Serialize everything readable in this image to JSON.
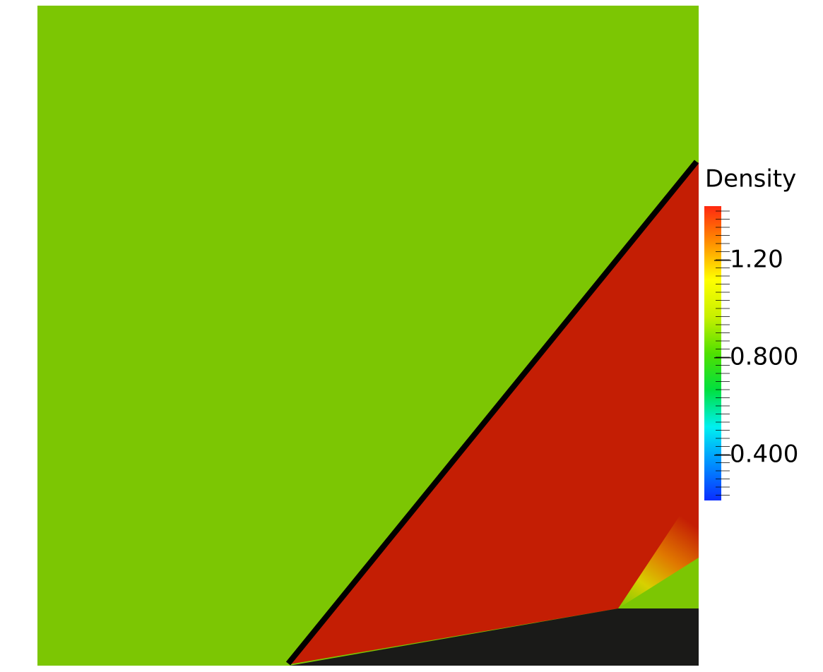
{
  "chart_data": {
    "type": "colorbar",
    "title": "Density",
    "clim": [
      0.214,
      1.423
    ],
    "cticks": [
      {
        "value": 1.2,
        "label": "1.20"
      },
      {
        "value": 0.8,
        "label": "0.800"
      },
      {
        "value": 0.4,
        "label": "0.400"
      }
    ],
    "colormap": [
      "#0a2dff",
      "#0090ff",
      "#00f0f0",
      "#00e040",
      "#50e000",
      "#c8f000",
      "#ffff00",
      "#ff9000",
      "#ff2810"
    ]
  }
}
